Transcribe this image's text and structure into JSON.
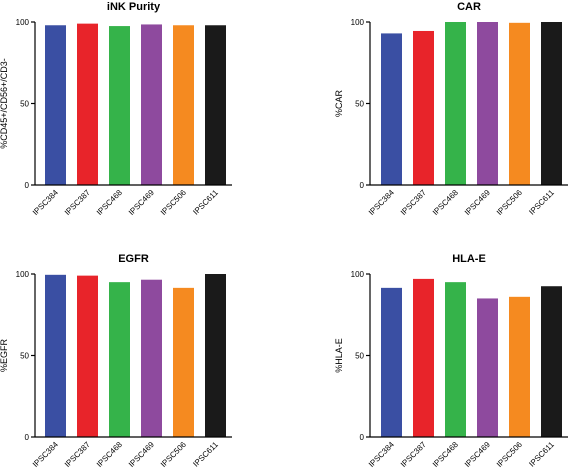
{
  "chart_data": [
    {
      "type": "bar",
      "title": "iNK Purity",
      "xlabel": "",
      "ylabel": "%CD45+/CD56+/CD3-",
      "ylim": [
        0,
        100
      ],
      "yticks": [
        0,
        50,
        100
      ],
      "categories": [
        "IPSC384",
        "IPSC387",
        "IPSC468",
        "IPSC469",
        "IPSC506",
        "IPSC611"
      ],
      "values": [
        98,
        99,
        97.5,
        98.5,
        98,
        98
      ],
      "colors": [
        "#3a4fa3",
        "#e8242a",
        "#35b34a",
        "#8e4a9e",
        "#f58a20",
        "#1a1a1a"
      ],
      "grid": false
    },
    {
      "type": "bar",
      "title": "CAR",
      "xlabel": "",
      "ylabel": "%CAR",
      "ylim": [
        0,
        100
      ],
      "yticks": [
        0,
        50,
        100
      ],
      "categories": [
        "IPSC384",
        "IPSC387",
        "IPSC468",
        "IPSC469",
        "IPSC506",
        "IPSC611"
      ],
      "values": [
        93,
        94.5,
        100,
        100,
        99.5,
        100
      ],
      "colors": [
        "#3a4fa3",
        "#e8242a",
        "#35b34a",
        "#8e4a9e",
        "#f58a20",
        "#1a1a1a"
      ],
      "grid": false
    },
    {
      "type": "bar",
      "title": "EGFR",
      "xlabel": "",
      "ylabel": "%EGFR",
      "ylim": [
        0,
        100
      ],
      "yticks": [
        0,
        50,
        100
      ],
      "categories": [
        "IPSC384",
        "IPSC387",
        "IPSC468",
        "IPSC469",
        "IPSC506",
        "IPSC611"
      ],
      "values": [
        99.5,
        99,
        95,
        96.5,
        91.5,
        100
      ],
      "colors": [
        "#3a4fa3",
        "#e8242a",
        "#35b34a",
        "#8e4a9e",
        "#f58a20",
        "#1a1a1a"
      ],
      "grid": false
    },
    {
      "type": "bar",
      "title": "HLA-E",
      "xlabel": "",
      "ylabel": "%HLA-E",
      "ylim": [
        0,
        100
      ],
      "yticks": [
        0,
        50,
        100
      ],
      "categories": [
        "IPSC384",
        "IPSC387",
        "IPSC468",
        "IPSC469",
        "IPSC506",
        "IPSC611"
      ],
      "values": [
        91.5,
        97,
        95,
        85,
        86,
        92.5
      ],
      "colors": [
        "#3a4fa3",
        "#e8242a",
        "#35b34a",
        "#8e4a9e",
        "#f58a20",
        "#1a1a1a"
      ],
      "grid": false
    }
  ]
}
